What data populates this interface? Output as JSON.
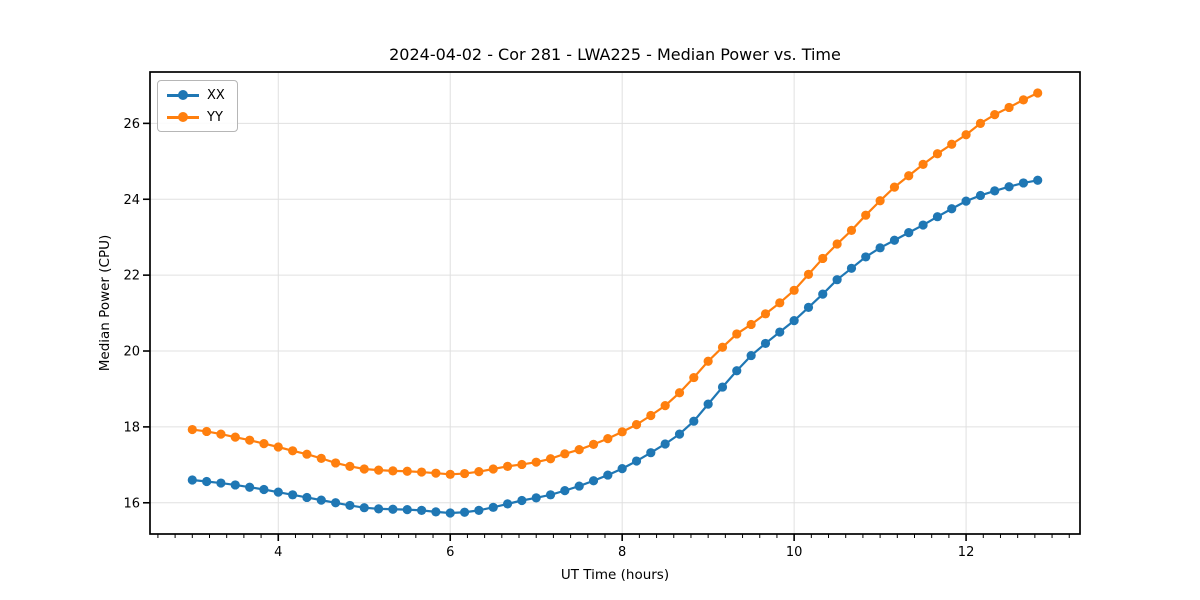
{
  "chart_data": {
    "type": "line",
    "title": "2024-04-02 - Cor 281 - LWA225 - Median Power vs. Time",
    "xlabel": "UT Time (hours)",
    "ylabel": "Median Power (CPU)",
    "xlim": [
      2.508,
      13.325
    ],
    "ylim": [
      15.177,
      27.354
    ],
    "xticks": [
      4,
      6,
      8,
      10,
      12
    ],
    "yticks": [
      16,
      18,
      20,
      22,
      24,
      26
    ],
    "x_minor_step": 0.2,
    "grid": true,
    "legend_position": "upper left",
    "background": "#ffffff",
    "grid_color": "#e0e0e0",
    "x": [
      3.0,
      3.167,
      3.333,
      3.5,
      3.667,
      3.833,
      4.0,
      4.167,
      4.333,
      4.5,
      4.667,
      4.833,
      5.0,
      5.167,
      5.333,
      5.5,
      5.667,
      5.833,
      6.0,
      6.167,
      6.333,
      6.5,
      6.667,
      6.833,
      7.0,
      7.167,
      7.333,
      7.5,
      7.667,
      7.833,
      8.0,
      8.167,
      8.333,
      8.5,
      8.667,
      8.833,
      9.0,
      9.167,
      9.333,
      9.5,
      9.667,
      9.833,
      10.0,
      10.167,
      10.333,
      10.5,
      10.667,
      10.833,
      11.0,
      11.167,
      11.333,
      11.5,
      11.667,
      11.833,
      12.0,
      12.167,
      12.333,
      12.5,
      12.667,
      12.833
    ],
    "series": [
      {
        "name": "XX",
        "color": "#1f77b4",
        "values": [
          16.6,
          16.56,
          16.52,
          16.47,
          16.41,
          16.35,
          16.28,
          16.21,
          16.14,
          16.07,
          16.0,
          15.93,
          15.87,
          15.84,
          15.83,
          15.82,
          15.8,
          15.76,
          15.73,
          15.75,
          15.8,
          15.88,
          15.97,
          16.06,
          16.13,
          16.21,
          16.32,
          16.44,
          16.58,
          16.73,
          16.9,
          17.1,
          17.32,
          17.55,
          17.81,
          18.15,
          18.6,
          19.05,
          19.48,
          19.88,
          20.2,
          20.5,
          20.8,
          21.15,
          21.5,
          21.88,
          22.18,
          22.48,
          22.72,
          22.92,
          23.12,
          23.32,
          23.54,
          23.75,
          23.95,
          24.1,
          24.22,
          24.33,
          24.43,
          24.5
        ]
      },
      {
        "name": "YY",
        "color": "#ff7f0e",
        "values": [
          17.93,
          17.88,
          17.81,
          17.73,
          17.65,
          17.56,
          17.47,
          17.37,
          17.28,
          17.17,
          17.05,
          16.96,
          16.89,
          16.86,
          16.84,
          16.83,
          16.81,
          16.78,
          16.75,
          16.77,
          16.82,
          16.89,
          16.96,
          17.01,
          17.07,
          17.16,
          17.29,
          17.4,
          17.54,
          17.69,
          17.87,
          18.06,
          18.3,
          18.56,
          18.9,
          19.3,
          19.73,
          20.1,
          20.45,
          20.7,
          20.98,
          21.27,
          21.6,
          22.02,
          22.44,
          22.82,
          23.18,
          23.58,
          23.96,
          24.32,
          24.62,
          24.92,
          25.2,
          25.45,
          25.7,
          26.0,
          26.23,
          26.42,
          26.62,
          26.8
        ]
      }
    ]
  }
}
